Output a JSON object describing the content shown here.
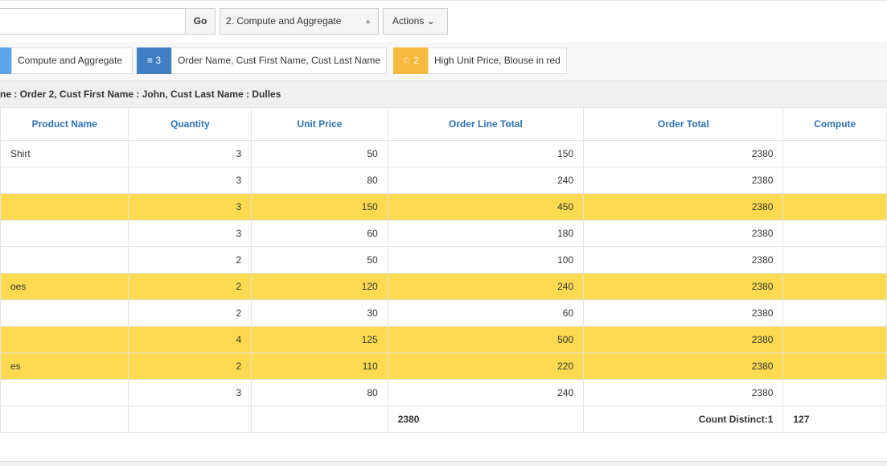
{
  "toolbar": {
    "go": "Go",
    "report_select": "2. Compute and Aggregate",
    "actions": "Actions"
  },
  "filters": [
    {
      "label": "Compute and Aggregate"
    },
    {
      "count": "3",
      "label": "Order Name, Cust First Name, Cust Last Name"
    },
    {
      "count": "2",
      "label": "High Unit Price, Blouse in red"
    }
  ],
  "break_header": "ne : Order 2, Cust First Name : John, Cust Last Name : Dulles",
  "table": {
    "columns": [
      "Product Name",
      "Quantity",
      "Unit Price",
      "Order Line Total",
      "Order Total",
      "Compute"
    ],
    "rows": [
      {
        "product": "Shirt",
        "quantity": 3,
        "unit_price": 50,
        "line_total": 150,
        "order_total": 2380,
        "highlight": false
      },
      {
        "product": null,
        "quantity": 3,
        "unit_price": 80,
        "line_total": 240,
        "order_total": 2380,
        "highlight": false
      },
      {
        "product": null,
        "quantity": 3,
        "unit_price": 150,
        "line_total": 450,
        "order_total": 2380,
        "highlight": true
      },
      {
        "product": null,
        "quantity": 3,
        "unit_price": 60,
        "line_total": 180,
        "order_total": 2380,
        "highlight": false
      },
      {
        "product": null,
        "quantity": 2,
        "unit_price": 50,
        "line_total": 100,
        "order_total": 2380,
        "highlight": false
      },
      {
        "product": "oes",
        "quantity": 2,
        "unit_price": 120,
        "line_total": 240,
        "order_total": 2380,
        "highlight": true
      },
      {
        "product": null,
        "quantity": 2,
        "unit_price": 30,
        "line_total": 60,
        "order_total": 2380,
        "highlight": false
      },
      {
        "product": null,
        "quantity": 4,
        "unit_price": 125,
        "line_total": 500,
        "order_total": 2380,
        "highlight": true
      },
      {
        "product": "es",
        "quantity": 2,
        "unit_price": 110,
        "line_total": 220,
        "order_total": 2380,
        "highlight": true
      },
      {
        "product": null,
        "quantity": 3,
        "unit_price": 80,
        "line_total": 240,
        "order_total": 2380,
        "highlight": false
      }
    ],
    "footer": {
      "line_total": "2380",
      "order_total": "Count Distinct:1",
      "compute": "127"
    }
  }
}
